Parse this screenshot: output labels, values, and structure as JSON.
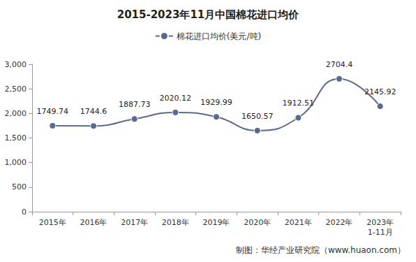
{
  "chart_data": {
    "type": "line",
    "title": "2015-2023年11月中国棉花进口均价",
    "source": "制图：华经产业研究院（www.huaon.com）",
    "categories": [
      "2015年",
      "2016年",
      "2017年",
      "2018年",
      "2019年",
      "2020年",
      "2021年",
      "2022年",
      "2023年1-11月"
    ],
    "series": [
      {
        "name": "棉花进口均价(美元/吨)",
        "color": "#5a6a8e",
        "values": [
          1749.74,
          1744.6,
          1887.73,
          2020.12,
          1929.99,
          1650.57,
          1912.51,
          2704.4,
          2145.92
        ]
      }
    ],
    "ylim": [
      0,
      3000
    ],
    "yticks": [
      0,
      500,
      1000,
      1500,
      2000,
      2500,
      3000
    ],
    "grid": false,
    "legend": "top",
    "data_labels": true,
    "marker": "circle",
    "line_style": "smooth"
  }
}
